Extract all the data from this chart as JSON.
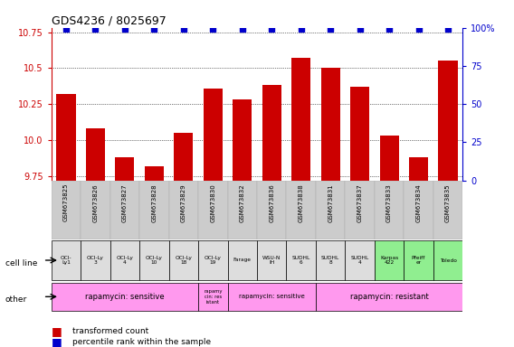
{
  "title": "GDS4236 / 8025697",
  "bar_values": [
    10.32,
    10.08,
    9.88,
    9.82,
    10.05,
    10.36,
    10.28,
    10.38,
    10.57,
    10.5,
    10.37,
    10.03,
    9.88,
    10.55
  ],
  "percentile_values": [
    99,
    99,
    99,
    99,
    99,
    99,
    99,
    99,
    99,
    99,
    99,
    99,
    99,
    99
  ],
  "gsm_labels": [
    "GSM673825",
    "GSM673826",
    "GSM673827",
    "GSM673828",
    "GSM673829",
    "GSM673830",
    "GSM673832",
    "GSM673836",
    "GSM673838",
    "GSM673831",
    "GSM673837",
    "GSM673833",
    "GSM673834",
    "GSM673835"
  ],
  "cell_line_labels": [
    "OCI-\nLy1",
    "OCI-Ly\n3",
    "OCI-Ly\n4",
    "OCI-Ly\n10",
    "OCI-Ly\n18",
    "OCI-Ly\n19",
    "Farage",
    "WSU-N\nIH",
    "SUDHL\n6",
    "SUDHL\n8",
    "SUDHL\n4",
    "Karpas\n422",
    "Pfeiff\ner",
    "Toledo"
  ],
  "cell_line_colors": [
    "#dddddd",
    "#dddddd",
    "#dddddd",
    "#dddddd",
    "#dddddd",
    "#dddddd",
    "#dddddd",
    "#dddddd",
    "#dddddd",
    "#dddddd",
    "#dddddd",
    "#90ee90",
    "#90ee90",
    "#90ee90"
  ],
  "bar_color": "#cc0000",
  "dot_color": "#0000cc",
  "ylim_left": [
    9.72,
    10.78
  ],
  "ylim_right": [
    0,
    100
  ],
  "yticks_left": [
    9.75,
    10.0,
    10.25,
    10.5,
    10.75
  ],
  "yticks_right": [
    0,
    25,
    50,
    75,
    100
  ],
  "magenta_color": "#ff99ee",
  "gray_color": "#cccccc",
  "green_color": "#90ee90",
  "legend_items": [
    {
      "color": "#cc0000",
      "label": "transformed count"
    },
    {
      "color": "#0000cc",
      "label": "percentile rank within the sample"
    }
  ],
  "background_color": "#ffffff"
}
